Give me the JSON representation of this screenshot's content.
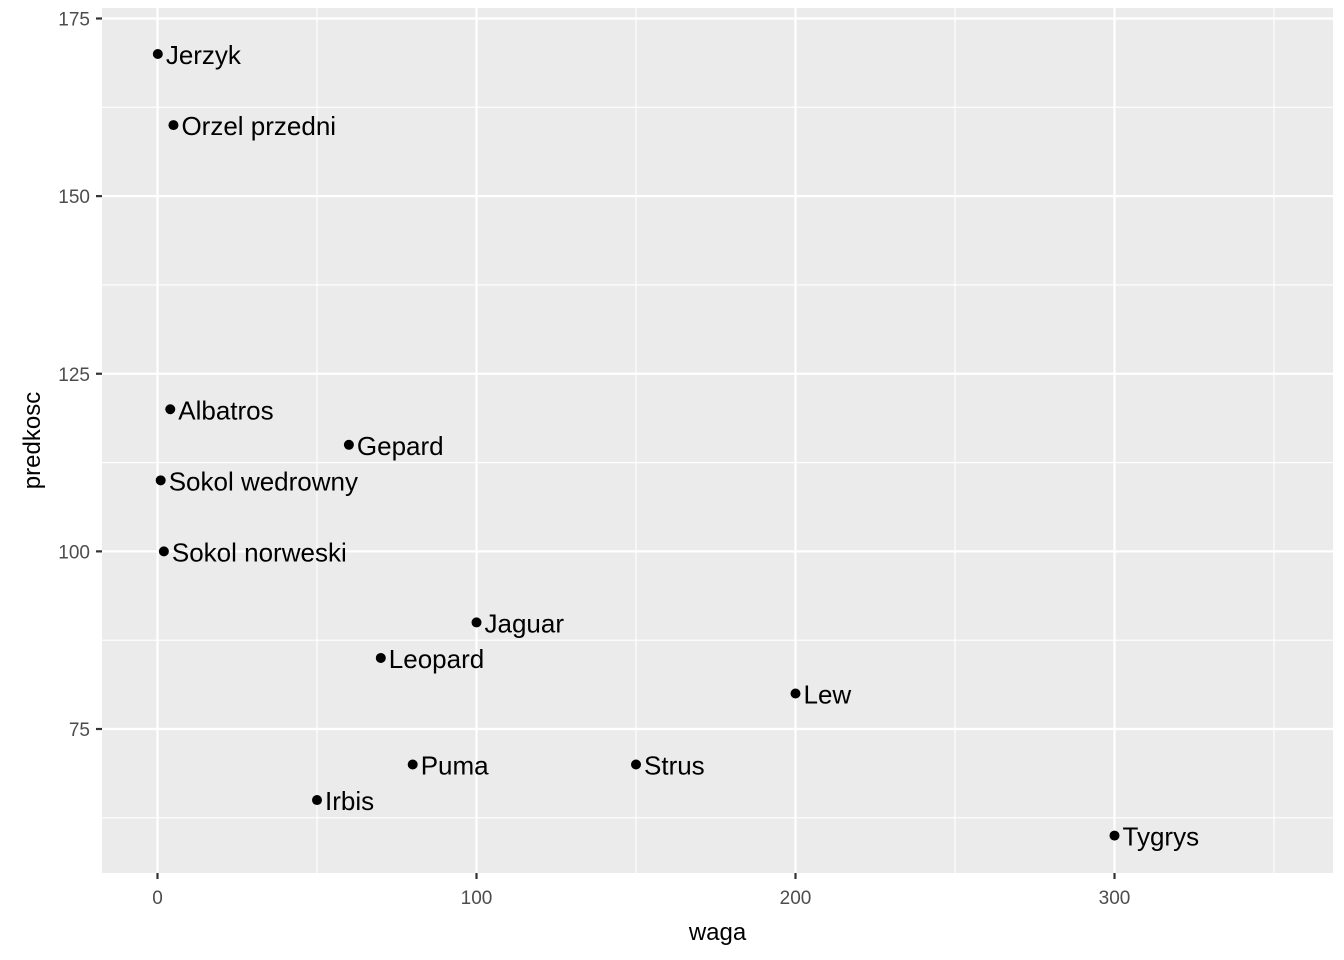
{
  "chart_data": {
    "type": "scatter",
    "title": "",
    "xlabel": "waga",
    "ylabel": "predkosc",
    "xlim": [
      -17.5,
      367.5
    ],
    "ylim": [
      55,
      175
    ],
    "xticks": [
      0,
      100,
      200,
      300
    ],
    "yticks": [
      75,
      100,
      125,
      150,
      175
    ],
    "xminor": [
      50,
      150,
      250,
      350
    ],
    "yminor": [
      62.5,
      87.5,
      112.5,
      137.5,
      162.5
    ],
    "grid": true,
    "legend": "none",
    "points": [
      {
        "label": "Jerzyk",
        "x": 0.1,
        "y": 170
      },
      {
        "label": "Orzel przedni",
        "x": 5,
        "y": 160
      },
      {
        "label": "Albatros",
        "x": 4,
        "y": 120
      },
      {
        "label": "Gepard",
        "x": 60,
        "y": 115
      },
      {
        "label": "Sokol wedrowny",
        "x": 1,
        "y": 110
      },
      {
        "label": "Sokol norweski",
        "x": 2,
        "y": 100
      },
      {
        "label": "Jaguar",
        "x": 100,
        "y": 90
      },
      {
        "label": "Leopard",
        "x": 70,
        "y": 85
      },
      {
        "label": "Lew",
        "x": 200,
        "y": 80
      },
      {
        "label": "Puma",
        "x": 80,
        "y": 70
      },
      {
        "label": "Strus",
        "x": 150,
        "y": 70
      },
      {
        "label": "Irbis",
        "x": 50,
        "y": 65
      },
      {
        "label": "Tygrys",
        "x": 300,
        "y": 60
      }
    ]
  }
}
